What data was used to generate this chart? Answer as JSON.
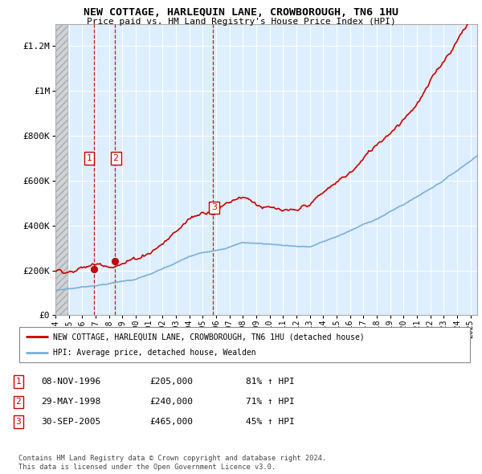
{
  "title": "NEW COTTAGE, HARLEQUIN LANE, CROWBOROUGH, TN6 1HU",
  "subtitle": "Price paid vs. HM Land Registry's House Price Index (HPI)",
  "ylim": [
    0,
    1300000
  ],
  "yticks": [
    0,
    200000,
    400000,
    600000,
    800000,
    1000000,
    1200000
  ],
  "ytick_labels": [
    "£0",
    "£200K",
    "£400K",
    "£600K",
    "£800K",
    "£1M",
    "£1.2M"
  ],
  "xlim_start": 1994.0,
  "xlim_end": 2025.5,
  "line_color_red": "#cc0000",
  "line_color_blue": "#7ab0d8",
  "chart_bg": "#ddeeff",
  "grid_color": "#ffffff",
  "purchases": [
    {
      "num": 1,
      "date": "08-NOV-1996",
      "price": 205000,
      "hpi_pct": "81% ↑ HPI",
      "x": 1996.86
    },
    {
      "num": 2,
      "date": "29-MAY-1998",
      "price": 240000,
      "hpi_pct": "71% ↑ HPI",
      "x": 1998.41
    },
    {
      "num": 3,
      "date": "30-SEP-2005",
      "price": 465000,
      "hpi_pct": "45% ↑ HPI",
      "x": 2005.75
    }
  ],
  "legend_label_red": "NEW COTTAGE, HARLEQUIN LANE, CROWBOROUGH, TN6 1HU (detached house)",
  "legend_label_blue": "HPI: Average price, detached house, Wealden",
  "footer": "Contains HM Land Registry data © Crown copyright and database right 2024.\nThis data is licensed under the Open Government Licence v3.0.",
  "table_rows": [
    [
      "1",
      "08-NOV-1996",
      "£205,000",
      "81% ↑ HPI"
    ],
    [
      "2",
      "29-MAY-1998",
      "£240,000",
      "71% ↑ HPI"
    ],
    [
      "3",
      "30-SEP-2005",
      "£465,000",
      "45% ↑ HPI"
    ]
  ]
}
